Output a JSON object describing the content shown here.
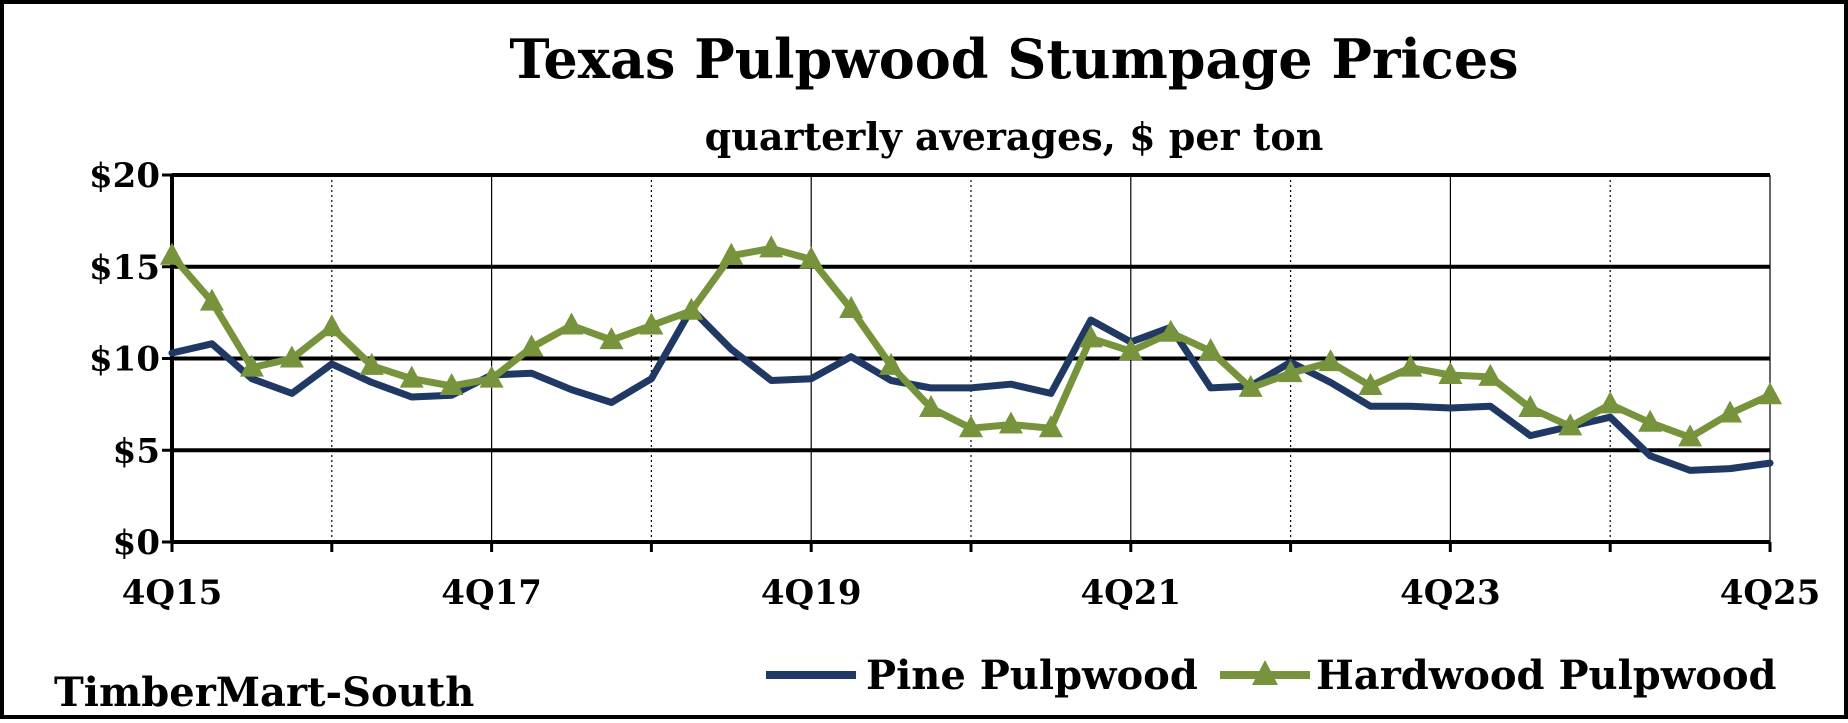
{
  "chart_data": {
    "type": "line",
    "title": "Texas Pulpwood Stumpage Prices",
    "subtitle": "quarterly averages, $ per ton",
    "x": [
      "4Q15",
      "1Q16",
      "2Q16",
      "3Q16",
      "4Q16",
      "1Q17",
      "2Q17",
      "3Q17",
      "4Q17",
      "1Q18",
      "2Q18",
      "3Q18",
      "4Q18",
      "1Q19",
      "2Q19",
      "3Q19",
      "4Q19",
      "1Q20",
      "2Q20",
      "3Q20",
      "4Q20",
      "1Q21",
      "2Q21",
      "3Q21",
      "4Q21",
      "1Q22",
      "2Q22",
      "3Q22",
      "4Q22",
      "1Q23",
      "2Q23",
      "3Q23",
      "4Q23",
      "1Q24",
      "2Q24",
      "3Q24",
      "4Q24",
      "1Q25",
      "2Q25",
      "3Q25",
      "4Q25"
    ],
    "x_tick_labels": [
      "4Q15",
      "4Q17",
      "4Q19",
      "4Q21",
      "4Q23",
      "4Q25"
    ],
    "y_tick_labels": [
      "$0",
      "$5",
      "$10",
      "$15",
      "$20"
    ],
    "ylim": [
      0,
      20
    ],
    "grid": true,
    "legend_position": "bottom-right",
    "series": [
      {
        "name": "Pine Pulpwood",
        "color": "#1f3864",
        "marker": "none",
        "values": [
          10.3,
          10.8,
          8.9,
          8.1,
          9.7,
          8.7,
          7.9,
          8.0,
          9.1,
          9.2,
          8.3,
          7.6,
          8.9,
          12.7,
          10.5,
          8.8,
          8.9,
          10.1,
          8.8,
          8.4,
          8.4,
          8.6,
          8.1,
          12.1,
          10.9,
          11.7,
          8.4,
          8.5,
          9.8,
          8.7,
          7.4,
          7.4,
          7.3,
          7.4,
          5.8,
          6.3,
          6.8,
          4.7,
          3.9,
          4.0,
          4.3
        ]
      },
      {
        "name": "Hardwood Pulpwood",
        "color": "#77933c",
        "marker": "triangle",
        "values": [
          15.6,
          13.1,
          9.5,
          10.0,
          11.7,
          9.6,
          8.9,
          8.5,
          8.9,
          10.6,
          11.8,
          11.0,
          11.8,
          12.6,
          15.6,
          16.0,
          15.4,
          12.7,
          9.6,
          7.3,
          6.2,
          6.4,
          6.2,
          11.1,
          10.4,
          11.4,
          10.4,
          8.4,
          9.2,
          9.8,
          8.5,
          9.5,
          9.1,
          9.0,
          7.3,
          6.3,
          7.5,
          6.5,
          5.7,
          7.0,
          8.0
        ]
      }
    ]
  },
  "source_label": "TimberMart-South"
}
